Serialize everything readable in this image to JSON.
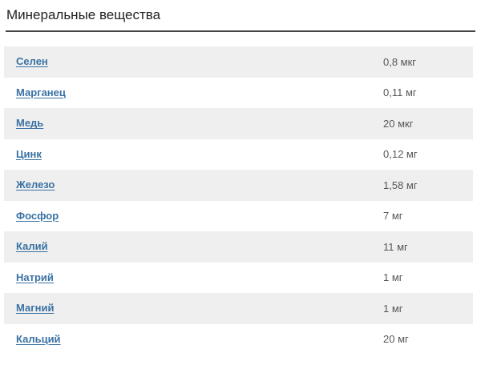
{
  "page": {
    "title": "Минеральные вещества"
  },
  "table": {
    "rows": [
      {
        "name": "Селен",
        "value": "0,8 мкг"
      },
      {
        "name": "Марганец",
        "value": "0,11 мг"
      },
      {
        "name": "Медь",
        "value": "20 мкг"
      },
      {
        "name": "Цинк",
        "value": "0,12 мг"
      },
      {
        "name": "Железо",
        "value": "1,58 мг"
      },
      {
        "name": "Фосфор",
        "value": "7 мг"
      },
      {
        "name": "Калий",
        "value": "11 мг"
      },
      {
        "name": "Натрий",
        "value": "1 мг"
      },
      {
        "name": "Магний",
        "value": "1 мг"
      },
      {
        "name": "Кальций",
        "value": "20 мг"
      }
    ]
  },
  "colors": {
    "link": "#3a72a4",
    "row_alt_bg": "#efefef",
    "value_text": "#575757",
    "title_text": "#222222",
    "rule": "#444444"
  }
}
